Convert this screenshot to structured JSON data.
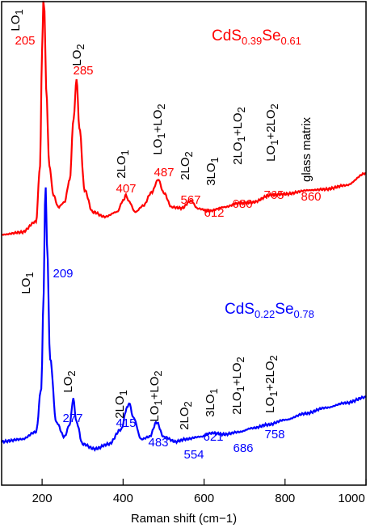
{
  "chart_data": {
    "type": "line",
    "xlabel": "Raman shift (cm−1)",
    "ylabel": "",
    "xlim": [
      100,
      1000
    ],
    "ylim": [
      0,
      1
    ],
    "xticks": [
      200,
      400,
      600,
      800,
      1000
    ],
    "grid": false,
    "series": [
      {
        "label_base": [
          "CdS",
          "Se"
        ],
        "label_subs": [
          "0.39",
          "0.61"
        ],
        "color": "#ff0000",
        "points": [
          [
            100,
            0.518
          ],
          [
            150,
            0.523
          ],
          [
            185,
            0.545
          ],
          [
            195,
            0.66
          ],
          [
            200,
            0.9
          ],
          [
            203,
            1.0
          ],
          [
            206,
            0.98
          ],
          [
            210,
            0.82
          ],
          [
            218,
            0.66
          ],
          [
            228,
            0.6
          ],
          [
            240,
            0.575
          ],
          [
            255,
            0.585
          ],
          [
            268,
            0.63
          ],
          [
            278,
            0.76
          ],
          [
            285,
            0.84
          ],
          [
            292,
            0.74
          ],
          [
            305,
            0.61
          ],
          [
            325,
            0.565
          ],
          [
            355,
            0.555
          ],
          [
            385,
            0.565
          ],
          [
            400,
            0.588
          ],
          [
            407,
            0.6
          ],
          [
            414,
            0.587
          ],
          [
            430,
            0.565
          ],
          [
            450,
            0.578
          ],
          [
            470,
            0.605
          ],
          [
            487,
            0.632
          ],
          [
            500,
            0.605
          ],
          [
            520,
            0.575
          ],
          [
            545,
            0.573
          ],
          [
            567,
            0.588
          ],
          [
            585,
            0.572
          ],
          [
            612,
            0.567
          ],
          [
            650,
            0.575
          ],
          [
            686,
            0.583
          ],
          [
            720,
            0.585
          ],
          [
            765,
            0.6
          ],
          [
            800,
            0.602
          ],
          [
            860,
            0.61
          ],
          [
            900,
            0.612
          ],
          [
            950,
            0.62
          ],
          [
            1000,
            0.645
          ]
        ],
        "peaks": [
          {
            "mode": "LO",
            "sub": "1",
            "value": "205"
          },
          {
            "mode": "LO",
            "sub": "2",
            "value": "285"
          },
          {
            "mode": "2LO",
            "sub": "1",
            "value": "407"
          },
          {
            "mode": "LO1+LO2",
            "value": "487"
          },
          {
            "mode": "2LO",
            "sub": "2",
            "value": "567"
          },
          {
            "mode": "3LO",
            "sub": "1",
            "value": "612"
          },
          {
            "mode": "2LO1+LO2",
            "value": "686"
          },
          {
            "mode": "LO1+2LO2",
            "value": "765"
          },
          {
            "mode": "glass matrix",
            "value": "860"
          }
        ]
      },
      {
        "label_base": [
          "CdS",
          "Se"
        ],
        "label_subs": [
          "0.22",
          "0.78"
        ],
        "color": "#0000ff",
        "points": [
          [
            100,
            0.09
          ],
          [
            150,
            0.095
          ],
          [
            185,
            0.11
          ],
          [
            198,
            0.2
          ],
          [
            204,
            0.4
          ],
          [
            207,
            0.58
          ],
          [
            209,
            0.615
          ],
          [
            212,
            0.5
          ],
          [
            220,
            0.26
          ],
          [
            235,
            0.13
          ],
          [
            255,
            0.1
          ],
          [
            268,
            0.125
          ],
          [
            277,
            0.178
          ],
          [
            285,
            0.13
          ],
          [
            300,
            0.085
          ],
          [
            330,
            0.075
          ],
          [
            365,
            0.085
          ],
          [
            395,
            0.115
          ],
          [
            410,
            0.16
          ],
          [
            415,
            0.17
          ],
          [
            425,
            0.14
          ],
          [
            445,
            0.095
          ],
          [
            465,
            0.1
          ],
          [
            483,
            0.13
          ],
          [
            500,
            0.1
          ],
          [
            530,
            0.09
          ],
          [
            554,
            0.095
          ],
          [
            590,
            0.1
          ],
          [
            621,
            0.108
          ],
          [
            650,
            0.105
          ],
          [
            686,
            0.11
          ],
          [
            720,
            0.118
          ],
          [
            758,
            0.125
          ],
          [
            800,
            0.135
          ],
          [
            850,
            0.148
          ],
          [
            900,
            0.16
          ],
          [
            950,
            0.17
          ],
          [
            1000,
            0.182
          ]
        ],
        "peaks": [
          {
            "mode": "LO",
            "sub": "1",
            "value": "209"
          },
          {
            "mode": "LO",
            "sub": "2",
            "value": "277"
          },
          {
            "mode": "2LO",
            "sub": "1",
            "value": "415"
          },
          {
            "mode": "LO1+LO2",
            "value": "483"
          },
          {
            "mode": "2LO",
            "sub": "2",
            "value": "554"
          },
          {
            "mode": "3LO",
            "sub": "1",
            "value": "621"
          },
          {
            "mode": "2LO1+LO2",
            "value": "686"
          },
          {
            "mode": "LO1+2LO2",
            "value": "758"
          }
        ]
      }
    ]
  }
}
